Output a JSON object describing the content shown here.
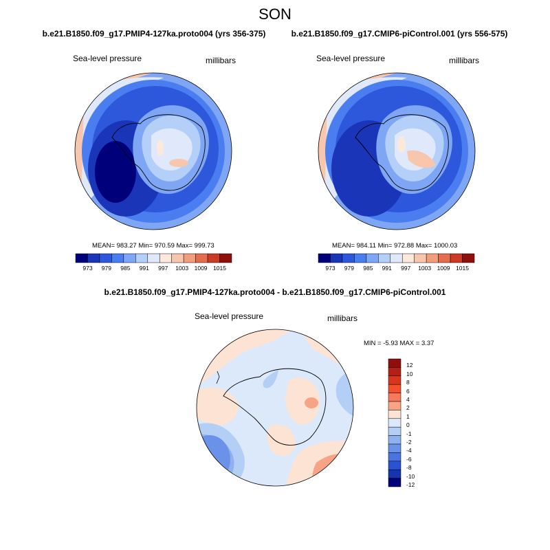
{
  "figure": {
    "season": "SON"
  },
  "panels": [
    {
      "title": "b.e21.B1850.f09_g17.PMIP4-127ka.proto004 (yrs 356-375)",
      "left_label": "Sea-level pressure",
      "right_label": "millibars",
      "stats": "MEAN= 983.27  Min= 970.59  Max= 999.73",
      "colorbar_labels": [
        "973",
        "979",
        "985",
        "991",
        "997",
        "1003",
        "1009",
        "1015"
      ]
    },
    {
      "title": "b.e21.B1850.f09_g17.CMIP6-piControl.001 (yrs 556-575)",
      "left_label": "Sea-level pressure",
      "right_label": "millibars",
      "stats": "MEAN= 984.11  Min= 972.88  Max= 1000.03",
      "colorbar_labels": [
        "973",
        "979",
        "985",
        "991",
        "997",
        "1003",
        "1009",
        "1015"
      ]
    }
  ],
  "difference": {
    "title": "b.e21.B1850.f09_g17.PMIP4-127ka.proto004 - b.e21.B1850.f09_g17.CMIP6-piControl.001",
    "left_label": "Sea-level pressure",
    "right_label": "millibars",
    "stats": "MIN =  -5.93 MAX =   3.37",
    "colorbar_labels": [
      "12",
      "10",
      "8",
      "6",
      "4",
      "2",
      "1",
      "0",
      "-1",
      "-2",
      "-4",
      "-6",
      "-8",
      "-10",
      "-12"
    ]
  },
  "colors": {
    "abs_scale": [
      "#00007a",
      "#1a35b8",
      "#2e58dc",
      "#4a7ef0",
      "#7ea6f4",
      "#b4cff8",
      "#dfe9fb",
      "#fde9dc",
      "#f8c6ad",
      "#f19e7c",
      "#e56c4f",
      "#cc3a28",
      "#8e0f0b"
    ],
    "diff_scale": [
      "#8e0f0b",
      "#b51f14",
      "#d8351c",
      "#f4502b",
      "#f6795a",
      "#f8a385",
      "#fde3d3",
      "#dce9fb",
      "#b4cff5",
      "#8fb2ef",
      "#6a92e8",
      "#4a74e0",
      "#2a53cf",
      "#1434b0",
      "#00007a"
    ]
  }
}
